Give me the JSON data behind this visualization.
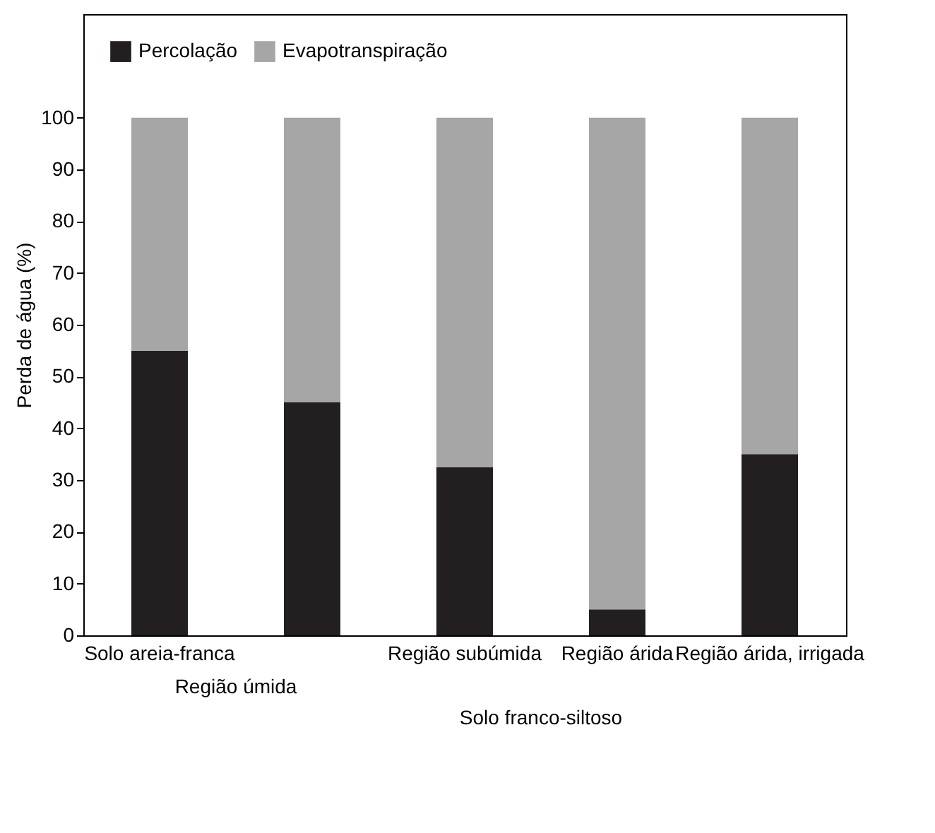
{
  "chart_data": {
    "type": "bar",
    "stacked": true,
    "ylabel": "Perda de água (%)",
    "categories": [
      "Solo areia-franca",
      null,
      "Região subúmida",
      "Região árida",
      "Região árida, irrigada"
    ],
    "series": [
      {
        "name": "Percolação",
        "color": "#231f20",
        "values": [
          55,
          45,
          32.5,
          5,
          35
        ]
      },
      {
        "name": "Evapotranspiração",
        "color": "#a6a6a6",
        "values": [
          45,
          55,
          67.5,
          95,
          65
        ]
      }
    ],
    "ylim": [
      0,
      120
    ],
    "yticks": [
      0,
      10,
      20,
      30,
      40,
      50,
      60,
      70,
      80,
      90,
      100
    ],
    "grid": false,
    "legend": "top left",
    "annotations": [
      "Região úmida",
      "Solo franco-siltoso"
    ]
  }
}
